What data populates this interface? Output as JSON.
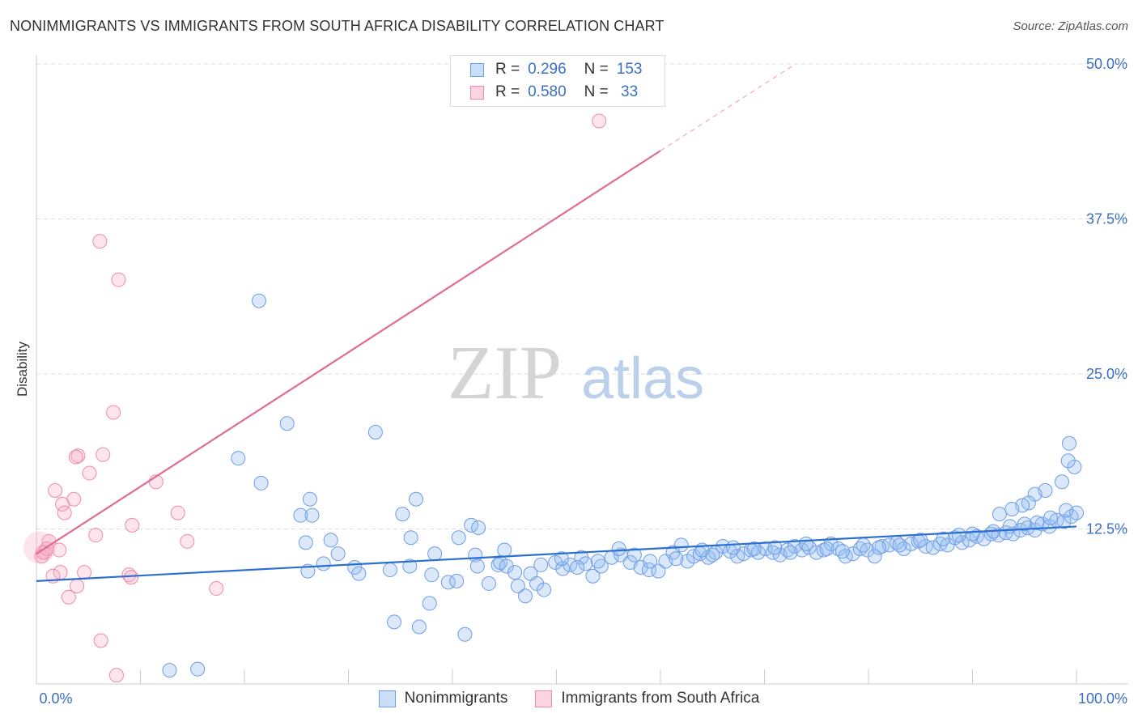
{
  "title": "NONIMMIGRANTS VS IMMIGRANTS FROM SOUTH AFRICA DISABILITY CORRELATION CHART",
  "source": "Source: ZipAtlas.com",
  "watermark": {
    "zip": "ZIP",
    "atlas": "atlas"
  },
  "legend": {
    "rows": [
      {
        "r_label": "R =",
        "r_value": "0.296",
        "n_label": "N =",
        "n_value": "153",
        "color": "#6d9de6"
      },
      {
        "r_label": "R =",
        "r_value": "0.580",
        "n_label": "N =",
        "n_value": " 33",
        "color": "#f08aa8"
      }
    ]
  },
  "bottom_legend": [
    "Nonimmigrants",
    "Immigrants from South Africa"
  ],
  "chart_data": {
    "type": "scatter",
    "title": "NONIMMIGRANTS VS IMMIGRANTS FROM SOUTH AFRICA DISABILITY CORRELATION CHART",
    "ylabel": "Disability",
    "xlim": [
      0,
      100
    ],
    "ylim": [
      0,
      50
    ],
    "x_tick_labels": [
      "0.0%",
      "100.0%"
    ],
    "y_tick_labels": [
      "12.5%",
      "25.0%",
      "37.5%",
      "50.0%"
    ],
    "y_ticks": [
      12.5,
      25.0,
      37.5,
      50.0
    ],
    "grid": true,
    "legend_position": "top-center",
    "series": [
      {
        "name": "Nonimmigrants",
        "color": "#6d9de6",
        "fill": "rgba(150,190,240,0.35)",
        "trend": {
          "x": [
            0,
            100
          ],
          "y": [
            8.3,
            12.7
          ]
        },
        "points": [
          [
            21.4,
            30.9
          ],
          [
            24.1,
            21.0
          ],
          [
            32.6,
            20.3
          ],
          [
            19.4,
            18.2
          ],
          [
            21.6,
            16.2
          ],
          [
            26.3,
            14.9
          ],
          [
            36.5,
            14.9
          ],
          [
            25.4,
            13.6
          ],
          [
            26.5,
            13.6
          ],
          [
            35.2,
            13.7
          ],
          [
            41.8,
            12.8
          ],
          [
            42.5,
            12.6
          ],
          [
            40.6,
            11.8
          ],
          [
            25.9,
            11.4
          ],
          [
            28.3,
            11.6
          ],
          [
            36.0,
            11.8
          ],
          [
            29.0,
            10.5
          ],
          [
            38.3,
            10.5
          ],
          [
            42.2,
            10.4
          ],
          [
            27.6,
            9.7
          ],
          [
            30.6,
            9.4
          ],
          [
            34.0,
            9.2
          ],
          [
            35.9,
            9.5
          ],
          [
            26.1,
            9.1
          ],
          [
            31.0,
            8.9
          ],
          [
            38.0,
            8.8
          ],
          [
            39.6,
            8.2
          ],
          [
            40.4,
            8.3
          ],
          [
            42.4,
            9.5
          ],
          [
            44.4,
            9.6
          ],
          [
            44.6,
            9.8
          ],
          [
            45.2,
            9.5
          ],
          [
            46.3,
            7.9
          ],
          [
            47.0,
            7.1
          ],
          [
            48.1,
            8.1
          ],
          [
            48.8,
            7.6
          ],
          [
            49.9,
            9.8
          ],
          [
            50.6,
            9.3
          ],
          [
            51.3,
            9.6
          ],
          [
            52.4,
            10.2
          ],
          [
            52.8,
            9.7
          ],
          [
            53.5,
            8.7
          ],
          [
            54.3,
            9.5
          ],
          [
            55.3,
            10.2
          ],
          [
            56.2,
            10.4
          ],
          [
            57.1,
            9.8
          ],
          [
            58.1,
            9.4
          ],
          [
            58.9,
            9.2
          ],
          [
            59.8,
            9.1
          ],
          [
            60.5,
            9.9
          ],
          [
            61.2,
            10.6
          ],
          [
            62.0,
            11.2
          ],
          [
            62.6,
            9.9
          ],
          [
            63.2,
            10.3
          ],
          [
            63.8,
            10.5
          ],
          [
            64.6,
            10.2
          ],
          [
            65.3,
            10.6
          ],
          [
            66.0,
            11.1
          ],
          [
            66.7,
            10.7
          ],
          [
            67.4,
            10.3
          ],
          [
            68.0,
            10.5
          ],
          [
            68.7,
            10.8
          ],
          [
            69.4,
            10.6
          ],
          [
            70.1,
            10.9
          ],
          [
            70.8,
            10.6
          ],
          [
            71.5,
            10.4
          ],
          [
            72.2,
            10.8
          ],
          [
            72.9,
            11.1
          ],
          [
            73.6,
            10.8
          ],
          [
            74.3,
            11.0
          ],
          [
            75.0,
            10.6
          ],
          [
            75.7,
            10.8
          ],
          [
            76.4,
            11.3
          ],
          [
            77.1,
            10.9
          ],
          [
            77.8,
            10.3
          ],
          [
            78.5,
            10.5
          ],
          [
            79.2,
            10.9
          ],
          [
            79.9,
            10.8
          ],
          [
            80.6,
            10.3
          ],
          [
            81.3,
            11.1
          ],
          [
            82.0,
            11.2
          ],
          [
            82.7,
            11.4
          ],
          [
            83.4,
            10.9
          ],
          [
            84.1,
            11.3
          ],
          [
            84.8,
            11.5
          ],
          [
            85.5,
            11.1
          ],
          [
            86.2,
            11.0
          ],
          [
            86.9,
            11.3
          ],
          [
            87.6,
            11.2
          ],
          [
            88.3,
            11.8
          ],
          [
            89.0,
            11.4
          ],
          [
            89.7,
            11.6
          ],
          [
            90.4,
            11.9
          ],
          [
            91.1,
            11.7
          ],
          [
            91.8,
            12.1
          ],
          [
            92.5,
            12.0
          ],
          [
            93.2,
            12.2
          ],
          [
            93.9,
            12.1
          ],
          [
            94.6,
            12.4
          ],
          [
            95.3,
            12.6
          ],
          [
            96.0,
            12.4
          ],
          [
            96.7,
            12.9
          ],
          [
            97.4,
            12.7
          ],
          [
            98.1,
            13.2
          ],
          [
            98.8,
            13.1
          ],
          [
            99.5,
            13.5
          ],
          [
            100.0,
            13.8
          ],
          [
            99.0,
            14.0
          ],
          [
            97.5,
            13.4
          ],
          [
            96.2,
            13.0
          ],
          [
            95.0,
            12.9
          ],
          [
            93.6,
            12.7
          ],
          [
            92.0,
            12.3
          ],
          [
            90.0,
            12.1
          ],
          [
            88.7,
            12.0
          ],
          [
            87.2,
            11.7
          ],
          [
            85.0,
            11.6
          ],
          [
            83.0,
            11.2
          ],
          [
            81.0,
            11.0
          ],
          [
            79.5,
            11.2
          ],
          [
            77.5,
            10.7
          ],
          [
            76.0,
            10.9
          ],
          [
            74.0,
            11.3
          ],
          [
            72.5,
            10.6
          ],
          [
            71.0,
            11.0
          ],
          [
            69.0,
            10.9
          ],
          [
            67.0,
            11.0
          ],
          [
            65.0,
            10.4
          ],
          [
            64.0,
            10.8
          ],
          [
            61.5,
            10.1
          ],
          [
            59.0,
            9.9
          ],
          [
            57.5,
            10.4
          ],
          [
            56.0,
            10.9
          ],
          [
            54.0,
            9.9
          ],
          [
            52.0,
            9.4
          ],
          [
            50.5,
            10.1
          ],
          [
            48.5,
            9.6
          ],
          [
            47.5,
            8.9
          ],
          [
            46.0,
            9.0
          ],
          [
            45.0,
            10.8
          ],
          [
            43.5,
            8.1
          ],
          [
            37.8,
            6.5
          ],
          [
            34.4,
            5.0
          ],
          [
            36.8,
            4.6
          ],
          [
            41.2,
            4.0
          ],
          [
            12.8,
            1.1
          ],
          [
            15.5,
            1.2
          ],
          [
            99.8,
            17.5
          ],
          [
            99.3,
            19.4
          ],
          [
            99.2,
            18.0
          ],
          [
            98.6,
            16.3
          ],
          [
            97.0,
            15.6
          ],
          [
            96.0,
            15.3
          ],
          [
            95.4,
            14.6
          ],
          [
            94.8,
            14.4
          ],
          [
            93.8,
            14.1
          ],
          [
            92.6,
            13.7
          ]
        ]
      },
      {
        "name": "Immigrants from South Africa",
        "color": "#f08aa8",
        "fill": "rgba(245,170,195,0.3)",
        "trend": {
          "x": [
            0,
            60
          ],
          "y": [
            10.5,
            43.0
          ]
        },
        "trend_dashed": {
          "x": [
            60,
            73
          ],
          "y": [
            43.0,
            50.0
          ]
        },
        "points": [
          [
            54.1,
            45.4
          ],
          [
            6.1,
            35.7
          ],
          [
            7.9,
            32.6
          ],
          [
            7.4,
            21.9
          ],
          [
            6.4,
            18.5
          ],
          [
            4.0,
            18.4
          ],
          [
            3.8,
            18.3
          ],
          [
            5.1,
            17.0
          ],
          [
            11.5,
            16.3
          ],
          [
            1.8,
            15.6
          ],
          [
            3.6,
            14.9
          ],
          [
            2.5,
            14.5
          ],
          [
            2.7,
            13.8
          ],
          [
            13.6,
            13.8
          ],
          [
            9.2,
            12.8
          ],
          [
            5.7,
            12.0
          ],
          [
            14.5,
            11.5
          ],
          [
            1.2,
            11.5
          ],
          [
            2.2,
            10.8
          ],
          [
            0.8,
            10.6
          ],
          [
            0.5,
            10.3
          ],
          [
            1.0,
            10.9
          ],
          [
            0.6,
            10.6
          ],
          [
            2.3,
            9.0
          ],
          [
            1.6,
            8.7
          ],
          [
            4.6,
            9.0
          ],
          [
            8.9,
            8.8
          ],
          [
            9.1,
            8.6
          ],
          [
            3.9,
            7.9
          ],
          [
            17.3,
            7.7
          ],
          [
            3.1,
            7.0
          ],
          [
            6.2,
            3.5
          ],
          [
            7.7,
            0.7
          ]
        ]
      }
    ]
  }
}
